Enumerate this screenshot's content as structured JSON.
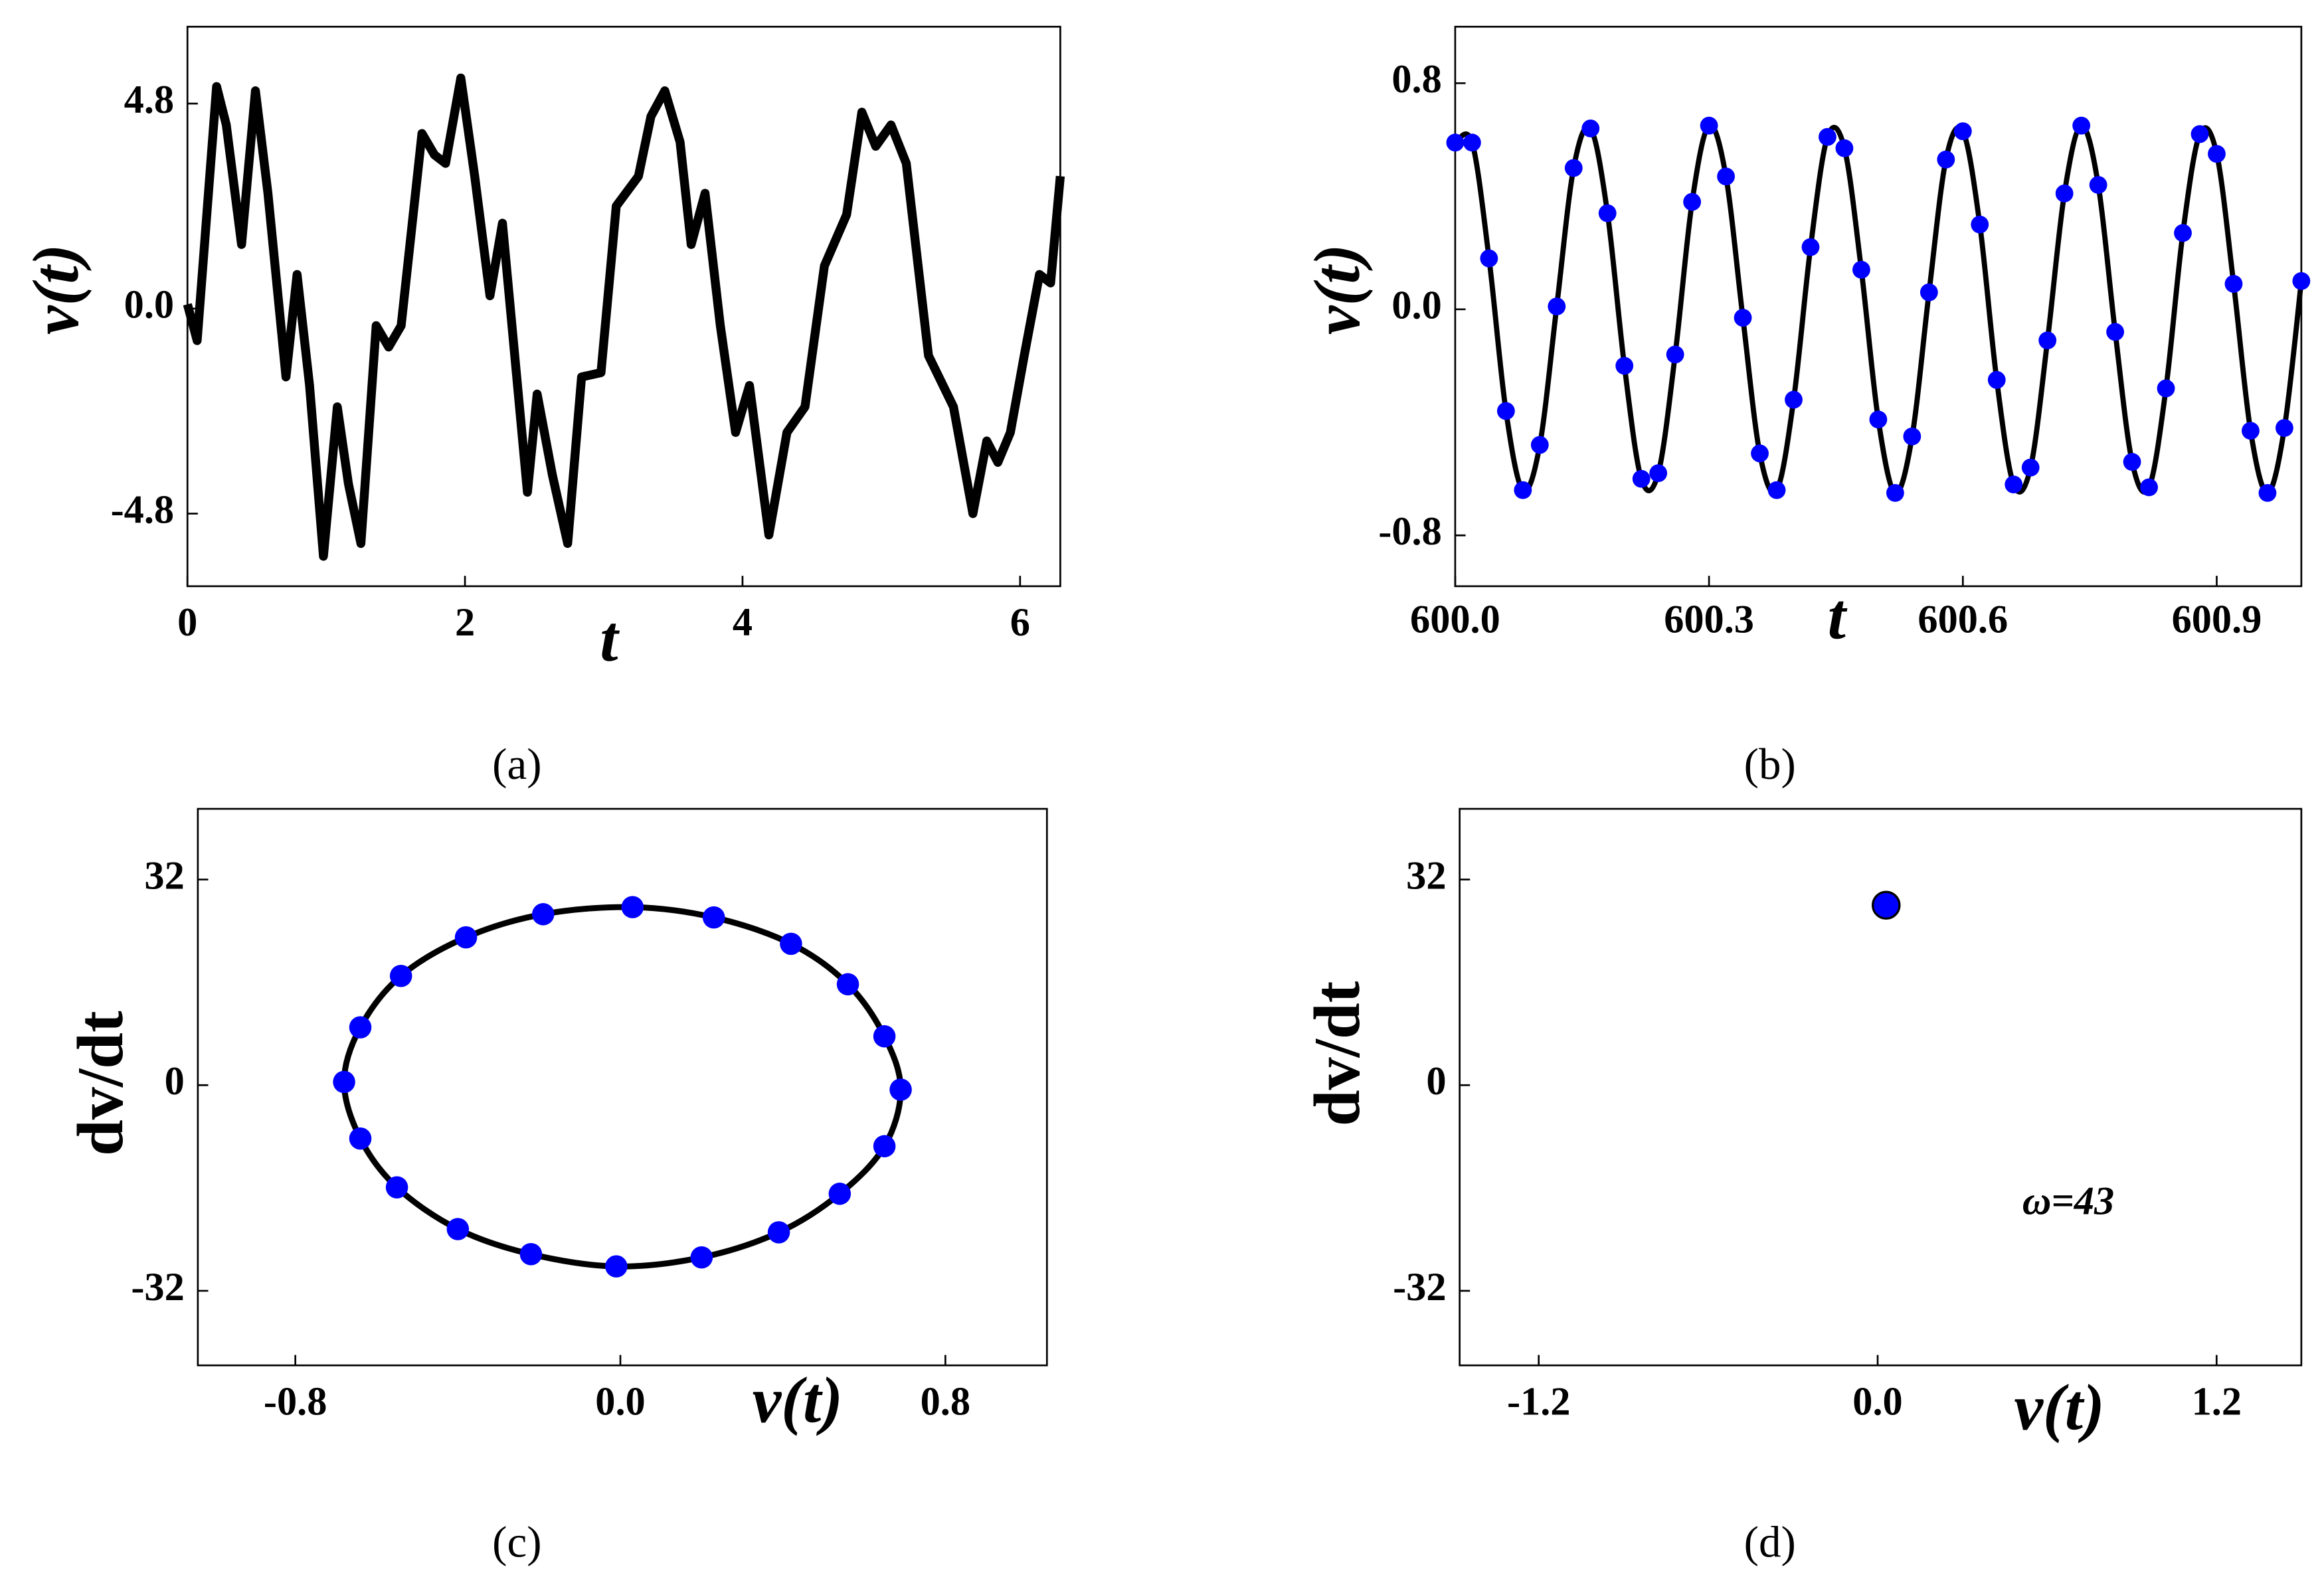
{
  "chart_data": [
    {
      "type": "line",
      "caption": "(a)",
      "xlabel": "t",
      "ylabel": "v(t)",
      "xlim": [
        0,
        6.29
      ],
      "ylim": [
        -6.5,
        6.6
      ],
      "xticks": [
        0,
        2,
        4,
        6
      ],
      "yticks": [
        4.8,
        {
          "value": 0,
          "label": "0.0"
        },
        -4.8
      ],
      "series": [
        {
          "color": "#000000",
          "line": true,
          "line_width": 6,
          "x": [
            0,
            0.07,
            0.21,
            0.28,
            0.39,
            0.49,
            0.58,
            0.71,
            0.79,
            0.88,
            0.98,
            1.08,
            1.16,
            1.25,
            1.36,
            1.45,
            1.54,
            1.69,
            1.78,
            1.86,
            1.97,
            2.07,
            2.18,
            2.27,
            2.45,
            2.52,
            2.63,
            2.74,
            2.84,
            2.98,
            3.09,
            3.25,
            3.34,
            3.44,
            3.55,
            3.63,
            3.73,
            3.84,
            3.95,
            4.05,
            4.19,
            4.32,
            4.45,
            4.59,
            4.75,
            4.86,
            4.96,
            5.07,
            5.18,
            5.34,
            5.52,
            5.66,
            5.76,
            5.84,
            5.93,
            6.03,
            6.14,
            6.22,
            6.29
          ],
          "values": [
            0.1,
            -0.75,
            5.2,
            4.3,
            1.5,
            5.1,
            2.7,
            -1.6,
            0.8,
            -1.8,
            -5.8,
            -2.3,
            -4.1,
            -5.5,
            -0.4,
            -0.9,
            -0.4,
            4.1,
            3.6,
            3.4,
            5.4,
            3.1,
            0.3,
            2.0,
            -4.3,
            -2.0,
            -3.9,
            -5.5,
            -1.6,
            -1.5,
            2.4,
            3.1,
            4.5,
            5.1,
            3.9,
            1.5,
            2.7,
            -0.4,
            -2.9,
            -1.8,
            -5.3,
            -2.9,
            -2.3,
            1.0,
            2.2,
            4.6,
            3.8,
            4.3,
            3.4,
            -1.1,
            -2.3,
            -4.8,
            -3.1,
            -3.6,
            -2.9,
            -1.1,
            0.8,
            0.6,
            3.1
          ]
        }
      ]
    },
    {
      "type": "line",
      "caption": "(b)",
      "xlabel": "t",
      "ylabel": "v(t)",
      "xlim": [
        600,
        601
      ],
      "ylim": [
        -0.98,
        1.0
      ],
      "xticks": [
        {
          "value": 600,
          "label": "600.0"
        },
        600.3,
        600.6,
        600.9
      ],
      "yticks": [
        0.8,
        {
          "value": 0,
          "label": "0.0"
        },
        -0.8
      ],
      "series": [
        {
          "color": "#0000ff",
          "line_color": "#000000",
          "line": true,
          "smooth": true,
          "markers": true,
          "line_width": 3.5,
          "marker_radius": 6,
          "x": [
            600,
            600.02,
            600.04,
            600.06,
            600.08,
            600.1,
            600.12,
            600.14,
            600.16,
            600.18,
            600.2,
            600.22,
            600.24,
            600.26,
            600.28,
            600.3,
            600.32,
            600.34,
            600.36,
            600.38,
            600.4,
            600.42,
            600.44,
            600.46,
            600.48,
            600.5,
            600.52,
            600.54,
            600.56,
            600.58,
            600.6,
            600.62,
            600.64,
            600.66,
            600.68,
            600.7,
            600.72,
            600.74,
            600.76,
            600.78,
            600.8,
            600.82,
            600.84,
            600.86,
            600.88,
            600.9,
            600.92,
            600.94,
            600.96,
            600.98,
            601
          ],
          "values": [
            0.59,
            0.59,
            0.18,
            -0.36,
            -0.64,
            -0.48,
            0.01,
            0.5,
            0.64,
            0.34,
            -0.2,
            -0.6,
            -0.58,
            -0.16,
            0.38,
            0.65,
            0.47,
            -0.03,
            -0.51,
            -0.64,
            -0.32,
            0.22,
            0.61,
            0.57,
            0.14,
            -0.39,
            -0.65,
            -0.45,
            0.06,
            0.53,
            0.63,
            0.3,
            -0.25,
            -0.62,
            -0.56,
            -0.11,
            0.41,
            0.65,
            0.44,
            -0.08,
            -0.54,
            -0.63,
            -0.28,
            0.27,
            0.62,
            0.55,
            0.09,
            -0.43,
            -0.65,
            -0.42,
            0.1
          ]
        }
      ]
    },
    {
      "type": "scatter",
      "caption": "(c)",
      "xlabel": "v(t)",
      "ylabel": "dv/dt",
      "xlim": [
        -1.04,
        1.05
      ],
      "ylim": [
        -43.6,
        43
      ],
      "xticks": [
        -0.8,
        {
          "value": 0,
          "label": "0.0"
        },
        0.8
      ],
      "yticks": [
        32,
        0,
        -32
      ],
      "series": [
        {
          "color": "#0000ff",
          "line_color": "#000000",
          "line": true,
          "smooth": true,
          "closed": true,
          "markers": true,
          "line_width": 4,
          "marker_radius": 7.5,
          "x": [
            -0.68,
            -0.64,
            -0.54,
            -0.38,
            -0.19,
            0.03,
            0.23,
            0.42,
            0.56,
            0.65,
            0.69,
            0.65,
            0.54,
            0.39,
            0.2,
            -0.01,
            -0.22,
            -0.4,
            -0.55,
            -0.64
          ],
          "values": [
            0.5,
            9,
            17,
            23,
            26.6,
            27.7,
            26.1,
            22,
            15.7,
            7.6,
            -0.7,
            -9.5,
            -16.9,
            -22.9,
            -26.8,
            -28.2,
            -26.3,
            -22.4,
            -15.9,
            -8.3
          ]
        }
      ]
    },
    {
      "type": "scatter",
      "caption": "(d)",
      "xlabel": "v(t)",
      "ylabel": "dv/dt",
      "annotation": "ω=43",
      "xlim": [
        -1.48,
        1.5
      ],
      "ylim": [
        -43.6,
        43
      ],
      "xticks": [
        -1.2,
        {
          "value": 0,
          "label": "0.0"
        },
        1.2
      ],
      "yticks": [
        32,
        0,
        -32
      ],
      "series": [
        {
          "color": "#0000ff",
          "edge_color": "#000000",
          "markers": true,
          "marker_radius": 9,
          "x": [
            0.03
          ],
          "values": [
            28
          ]
        }
      ]
    }
  ]
}
